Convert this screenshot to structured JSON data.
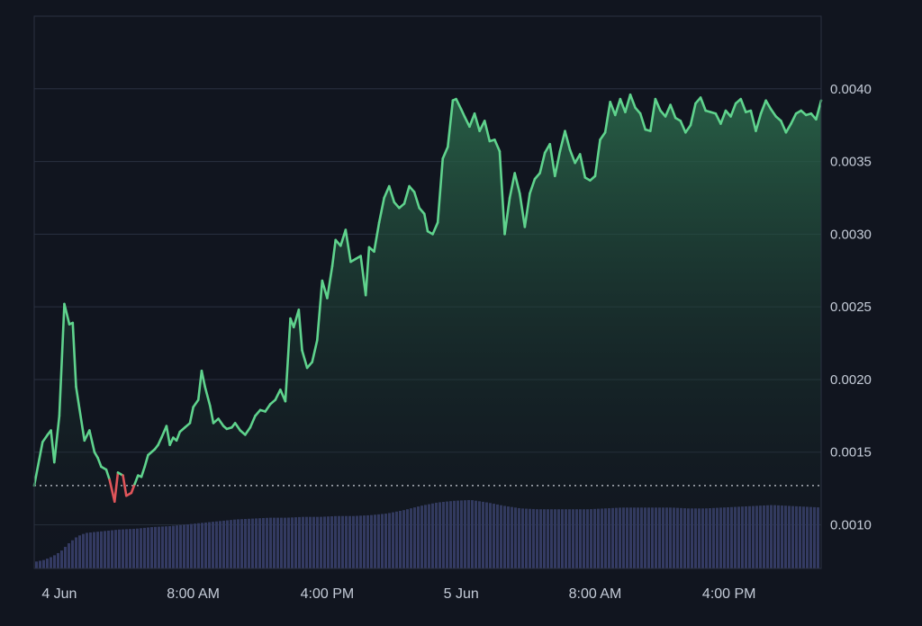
{
  "colors": {
    "background": "#11151f",
    "plot_border": "#2a3140",
    "grid": "#2a3140",
    "tick_text": "#c5ccd8",
    "line_up": "#5fd38d",
    "line_down": "#e0555a",
    "area_top": "#2b6b4c",
    "area_bottom": "#11151f",
    "baseline": "#c8ccd4",
    "volume": "#3b4270"
  },
  "chart_data": {
    "type": "area",
    "title": "",
    "xlabel": "",
    "ylabel": "",
    "grid": true,
    "y_axis_side": "right",
    "ylim": [
      0.0007,
      0.0045
    ],
    "y_ticks": [
      {
        "value": 0.001,
        "label": "0.0010"
      },
      {
        "value": 0.0015,
        "label": "0.0015"
      },
      {
        "value": 0.002,
        "label": "0.0020"
      },
      {
        "value": 0.0025,
        "label": "0.0025"
      },
      {
        "value": 0.003,
        "label": "0.0030"
      },
      {
        "value": 0.0035,
        "label": "0.0035"
      },
      {
        "value": 0.004,
        "label": "0.0040"
      }
    ],
    "xlim_hours": [
      0,
      47
    ],
    "x_ticks": [
      {
        "hour": 1.5,
        "label": "4 Jun"
      },
      {
        "hour": 9.5,
        "label": "8:00 AM"
      },
      {
        "hour": 17.5,
        "label": "4:00 PM"
      },
      {
        "hour": 25.5,
        "label": "5 Jun"
      },
      {
        "hour": 33.5,
        "label": "8:00 AM"
      },
      {
        "hour": 41.5,
        "label": "4:00 PM"
      }
    ],
    "baseline_price": 0.00127,
    "price_series": {
      "x_hours": [
        0.0,
        0.3,
        0.5,
        0.8,
        1.0,
        1.2,
        1.5,
        1.8,
        2.1,
        2.3,
        2.5,
        2.7,
        3.0,
        3.3,
        3.6,
        3.8,
        4.0,
        4.3,
        4.5,
        4.8,
        5.0,
        5.3,
        5.5,
        5.8,
        6.0,
        6.2,
        6.4,
        6.6,
        6.8,
        7.0,
        7.2,
        7.4,
        7.6,
        7.9,
        8.1,
        8.3,
        8.5,
        8.7,
        9.0,
        9.3,
        9.5,
        9.8,
        10.0,
        10.2,
        10.5,
        10.7,
        11.0,
        11.3,
        11.5,
        11.8,
        12.0,
        12.3,
        12.6,
        12.9,
        13.2,
        13.5,
        13.8,
        14.1,
        14.4,
        14.7,
        15.0,
        15.3,
        15.5,
        15.8,
        16.0,
        16.3,
        16.6,
        16.9,
        17.2,
        17.5,
        17.8,
        18.0,
        18.3,
        18.6,
        18.9,
        19.2,
        19.5,
        19.8,
        20.0,
        20.3,
        20.6,
        20.9,
        21.2,
        21.5,
        21.8,
        22.1,
        22.4,
        22.7,
        23.0,
        23.3,
        23.5,
        23.8,
        24.1,
        24.4,
        24.7,
        25.0,
        25.2,
        25.5,
        25.7,
        26.0,
        26.3,
        26.6,
        26.9,
        27.2,
        27.5,
        27.8,
        28.1,
        28.4,
        28.7,
        29.0,
        29.3,
        29.6,
        29.9,
        30.2,
        30.5,
        30.8,
        31.1,
        31.4,
        31.7,
        32.0,
        32.3,
        32.6,
        32.9,
        33.2,
        33.5,
        33.8,
        34.1,
        34.4,
        34.7,
        35.0,
        35.3,
        35.6,
        35.9,
        36.2,
        36.5,
        36.8,
        37.1,
        37.4,
        37.7,
        38.0,
        38.3,
        38.6,
        38.9,
        39.2,
        39.5,
        39.8,
        40.1,
        40.4,
        40.7,
        41.0,
        41.3,
        41.6,
        41.9,
        42.2,
        42.5,
        42.8,
        43.1,
        43.4,
        43.7,
        44.0,
        44.3,
        44.6,
        44.9,
        45.2,
        45.5,
        45.8,
        46.1,
        46.4,
        46.7,
        47.0
      ],
      "values": [
        0.00127,
        0.00145,
        0.00157,
        0.00162,
        0.00165,
        0.00143,
        0.00175,
        0.00252,
        0.00238,
        0.00239,
        0.00195,
        0.0018,
        0.00158,
        0.00165,
        0.0015,
        0.00146,
        0.0014,
        0.00138,
        0.00131,
        0.00116,
        0.00136,
        0.00134,
        0.0012,
        0.00122,
        0.00128,
        0.00134,
        0.00133,
        0.0014,
        0.00148,
        0.0015,
        0.00152,
        0.00155,
        0.0016,
        0.00168,
        0.00155,
        0.0016,
        0.00158,
        0.00164,
        0.00167,
        0.0017,
        0.00181,
        0.00186,
        0.00206,
        0.00195,
        0.00182,
        0.0017,
        0.00173,
        0.00168,
        0.00166,
        0.00167,
        0.0017,
        0.00165,
        0.00162,
        0.00167,
        0.00175,
        0.00179,
        0.00178,
        0.00183,
        0.00186,
        0.00193,
        0.00185,
        0.00242,
        0.00236,
        0.00248,
        0.0022,
        0.00208,
        0.00212,
        0.00227,
        0.00268,
        0.00256,
        0.00278,
        0.00296,
        0.00292,
        0.00303,
        0.00281,
        0.00283,
        0.00285,
        0.00258,
        0.00291,
        0.00288,
        0.00308,
        0.00325,
        0.00333,
        0.00322,
        0.00318,
        0.00321,
        0.00333,
        0.00329,
        0.00318,
        0.00314,
        0.00302,
        0.003,
        0.00308,
        0.00352,
        0.0036,
        0.00392,
        0.00393,
        0.00386,
        0.00381,
        0.00374,
        0.00383,
        0.00371,
        0.00378,
        0.00364,
        0.00365,
        0.00357,
        0.003,
        0.00325,
        0.00342,
        0.00328,
        0.00305,
        0.00328,
        0.00338,
        0.00342,
        0.00356,
        0.00362,
        0.0034,
        0.00357,
        0.00371,
        0.00358,
        0.00349,
        0.00355,
        0.00339,
        0.00337,
        0.0034,
        0.00365,
        0.0037,
        0.00391,
        0.00382,
        0.00393,
        0.00384,
        0.00396,
        0.00387,
        0.00383,
        0.00372,
        0.00371,
        0.00393,
        0.00385,
        0.00381,
        0.00389,
        0.0038,
        0.00378,
        0.0037,
        0.00375,
        0.0039,
        0.00394,
        0.00385,
        0.00384,
        0.00383,
        0.00376,
        0.00385,
        0.00381,
        0.0039,
        0.00393,
        0.00384,
        0.00385,
        0.00371,
        0.00383,
        0.00392,
        0.00386,
        0.00381,
        0.00378,
        0.0037,
        0.00376,
        0.00383,
        0.00385,
        0.00382,
        0.00383,
        0.00379,
        0.00392
      ]
    },
    "volume_series": {
      "ymax": 1.0,
      "x_hours": [
        0.0,
        0.5,
        1.0,
        1.5,
        2.0,
        2.5,
        3.0,
        3.5,
        4.0,
        4.5,
        5.0,
        6.0,
        7.0,
        8.0,
        9.0,
        10.0,
        11.0,
        12.0,
        13.0,
        14.0,
        15.0,
        16.0,
        17.0,
        18.0,
        19.0,
        20.0,
        21.0,
        22.0,
        23.0,
        24.0,
        25.0,
        26.0,
        27.0,
        28.0,
        29.0,
        30.0,
        31.0,
        32.0,
        33.0,
        34.0,
        35.0,
        36.0,
        37.0,
        38.0,
        39.0,
        40.0,
        41.0,
        42.0,
        43.0,
        44.0,
        45.0,
        46.0,
        47.0
      ],
      "values": [
        0.08,
        0.1,
        0.14,
        0.2,
        0.3,
        0.38,
        0.42,
        0.43,
        0.44,
        0.45,
        0.46,
        0.47,
        0.49,
        0.5,
        0.52,
        0.54,
        0.56,
        0.58,
        0.59,
        0.6,
        0.6,
        0.61,
        0.61,
        0.62,
        0.62,
        0.63,
        0.65,
        0.69,
        0.74,
        0.78,
        0.8,
        0.81,
        0.78,
        0.74,
        0.71,
        0.7,
        0.7,
        0.7,
        0.7,
        0.71,
        0.72,
        0.72,
        0.72,
        0.72,
        0.71,
        0.71,
        0.72,
        0.73,
        0.74,
        0.75,
        0.74,
        0.73,
        0.72
      ]
    }
  }
}
